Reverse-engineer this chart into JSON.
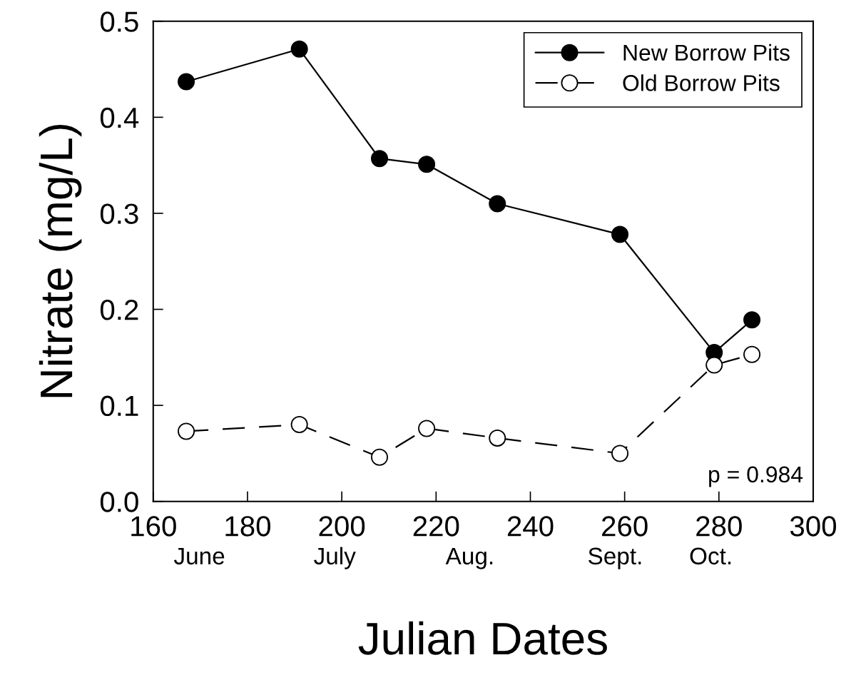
{
  "chart_data": {
    "type": "line",
    "xlabel": "Julian Dates",
    "ylabel": "Nitrate (mg/L)",
    "x": [
      167,
      191,
      208,
      218,
      233,
      259,
      279,
      287
    ],
    "series": [
      {
        "name": "New Borrow Pits",
        "color": "#000000",
        "values": [
          0.437,
          0.471,
          0.357,
          0.351,
          0.31,
          0.278,
          0.155,
          0.189
        ],
        "marker": "circle",
        "line_style": "solid"
      },
      {
        "name": "Old Borrow Pits",
        "color": "#ffffff",
        "values": [
          0.073,
          0.08,
          0.046,
          0.076,
          0.066,
          0.05,
          0.142,
          0.153
        ],
        "marker": "circle",
        "line_style": "dashed"
      }
    ],
    "xlim": [
      160,
      300
    ],
    "xticks": [
      160,
      180,
      200,
      220,
      240,
      260,
      280,
      300
    ],
    "ylim": [
      0,
      0.5
    ],
    "yticks": [
      {
        "value": 0,
        "label": "0.0"
      },
      0.1,
      0.2,
      0.3,
      0.4,
      0.5
    ],
    "legend": "top right",
    "grid": false,
    "annotations": [
      "June",
      "July",
      "Aug.",
      "Sept.",
      "Oct.",
      "p = 0.984"
    ]
  }
}
